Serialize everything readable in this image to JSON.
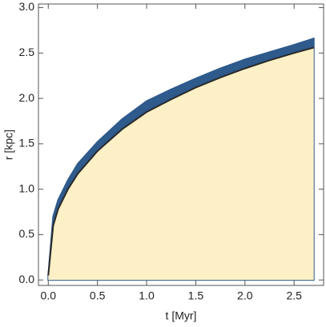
{
  "chart_data": {
    "type": "area",
    "xlabel": "t [Myr]",
    "ylabel": "r [kpc]",
    "x": [
      0,
      0.05,
      0.1,
      0.2,
      0.3,
      0.5,
      0.75,
      1.0,
      1.25,
      1.5,
      1.75,
      2.0,
      2.25,
      2.5,
      2.7
    ],
    "series": [
      {
        "color": "#2e5a8c",
        "values": [
          0.05,
          0.7,
          0.88,
          1.1,
          1.28,
          1.52,
          1.77,
          1.97,
          2.1,
          2.22,
          2.33,
          2.43,
          2.51,
          2.59,
          2.66
        ]
      },
      {
        "color": "#fdf0c6",
        "values": [
          0.05,
          0.6,
          0.78,
          1.0,
          1.17,
          1.42,
          1.66,
          1.85,
          1.99,
          2.12,
          2.23,
          2.33,
          2.42,
          2.5,
          2.56
        ]
      }
    ],
    "line_color": "#2a2a2a",
    "xlim": [
      -0.1,
      2.8
    ],
    "ylim": [
      -0.06,
      3.04
    ],
    "xticks": [
      {
        "value": 0,
        "label": "0.0"
      },
      {
        "value": 0.5,
        "label": "0.5"
      },
      {
        "value": 1,
        "label": "1.0"
      },
      {
        "value": 1.5,
        "label": "1.5"
      },
      {
        "value": 2,
        "label": "2.0"
      },
      {
        "value": 2.5,
        "label": "2.5"
      }
    ],
    "yticks": [
      {
        "value": 0,
        "label": "0.0"
      },
      {
        "value": 0.5,
        "label": "0.5"
      },
      {
        "value": 1,
        "label": "1.0"
      },
      {
        "value": 1.5,
        "label": "1.5"
      },
      {
        "value": 2,
        "label": "2.0"
      },
      {
        "value": 2.5,
        "label": "2.5"
      },
      {
        "value": 3,
        "label": "3.0"
      }
    ]
  }
}
